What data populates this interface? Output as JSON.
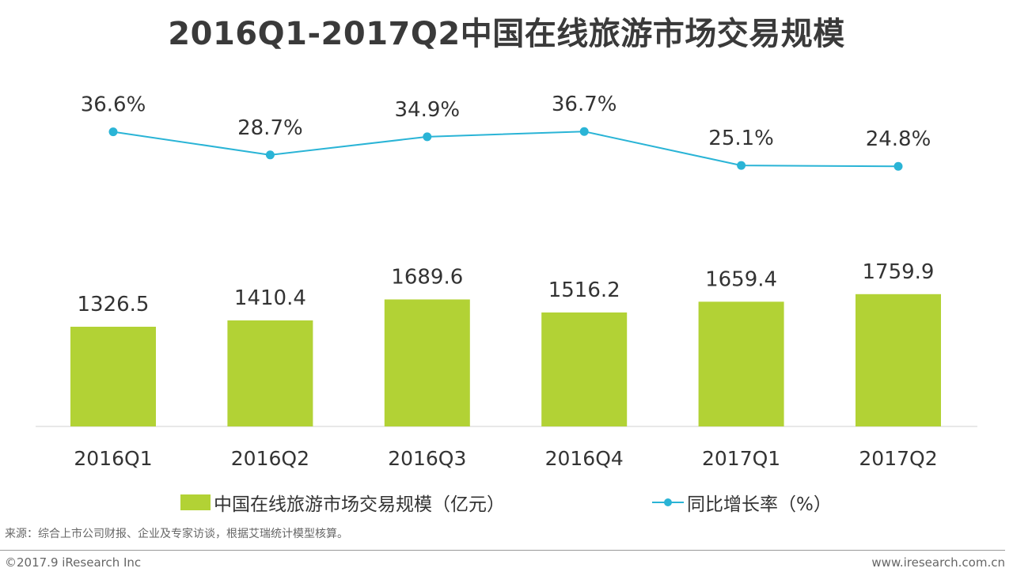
{
  "chart_data": {
    "type": "bar+line",
    "title": "2016Q1-2017Q2中国在线旅游市场交易规模",
    "categories": [
      "2016Q1",
      "2016Q2",
      "2016Q3",
      "2016Q4",
      "2017Q1",
      "2017Q2"
    ],
    "series": [
      {
        "name": "中国在线旅游市场交易规模（亿元）",
        "type": "bar",
        "values": [
          1326.5,
          1410.4,
          1689.6,
          1516.2,
          1659.4,
          1759.9
        ],
        "labels": [
          "1326.5",
          "1410.4",
          "1689.6",
          "1516.2",
          "1659.4",
          "1759.9"
        ],
        "color": "#b2d235"
      },
      {
        "name": "同比增长率（%）",
        "type": "line",
        "values": [
          36.6,
          28.7,
          34.9,
          36.7,
          25.1,
          24.8
        ],
        "labels": [
          "36.6%",
          "28.7%",
          "34.9%",
          "36.7%",
          "25.1%",
          "24.8%"
        ],
        "color": "#2ab4d6"
      }
    ],
    "bar_ylim": [
      0,
      2000
    ],
    "line_ylim": [
      0,
      60
    ],
    "grid": false,
    "legend_position": "bottom"
  },
  "footer": {
    "source": "来源：综合上市公司财报、企业及专家访谈，根据艾瑞统计模型核算。",
    "copyright": "©2017.9 iResearch Inc",
    "website": "www.iresearch.com.cn"
  }
}
